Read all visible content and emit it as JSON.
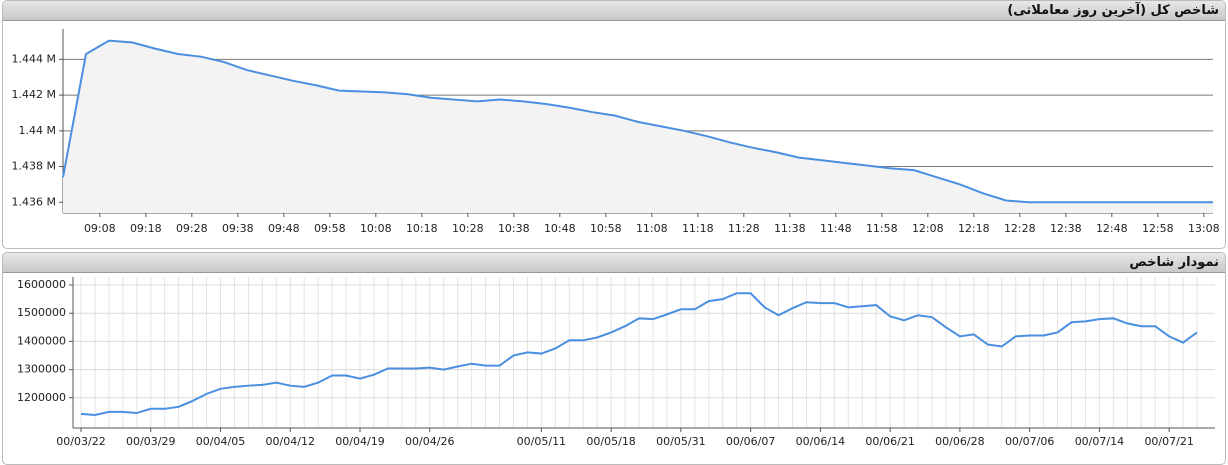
{
  "chart_data": [
    {
      "type": "line",
      "title": "شاخص کل (آخرین روز معاملاتی)",
      "color": "#4a8fe0",
      "grid": true,
      "x": [
        540,
        545,
        550,
        555,
        560,
        565,
        570,
        575,
        580,
        585,
        590,
        595,
        600,
        605,
        610,
        615,
        620,
        625,
        630,
        635,
        640,
        645,
        650,
        655,
        660,
        665,
        670,
        675,
        680,
        685,
        690,
        695,
        700,
        705,
        710,
        715,
        720,
        725,
        730,
        735,
        740,
        745,
        750,
        755,
        760,
        765,
        770,
        775,
        780,
        785,
        790
      ],
      "values": [
        1437400,
        1444300,
        1445050,
        1444950,
        1444600,
        1444300,
        1444150,
        1443850,
        1443400,
        1443100,
        1442800,
        1442550,
        1442250,
        1442200,
        1442150,
        1442050,
        1441850,
        1441750,
        1441650,
        1441750,
        1441650,
        1441500,
        1441300,
        1441050,
        1440850,
        1440500,
        1440250,
        1440000,
        1439700,
        1439350,
        1439050,
        1438800,
        1438500,
        1438350,
        1438200,
        1438050,
        1437900,
        1437800,
        1437400,
        1437000,
        1436500,
        1436100,
        1436000,
        1436000,
        1436000,
        1436000,
        1436000,
        1436000,
        1436000,
        1436000,
        1436000
      ],
      "xlim": [
        540,
        790
      ],
      "xticks": [
        {
          "value": 548,
          "label": "09:08"
        },
        {
          "value": 558,
          "label": "09:18"
        },
        {
          "value": 568,
          "label": "09:28"
        },
        {
          "value": 578,
          "label": "09:38"
        },
        {
          "value": 588,
          "label": "09:48"
        },
        {
          "value": 598,
          "label": "09:58"
        },
        {
          "value": 608,
          "label": "10:08"
        },
        {
          "value": 618,
          "label": "10:18"
        },
        {
          "value": 628,
          "label": "10:28"
        },
        {
          "value": 638,
          "label": "10:38"
        },
        {
          "value": 648,
          "label": "10:48"
        },
        {
          "value": 658,
          "label": "10:58"
        },
        {
          "value": 668,
          "label": "11:08"
        },
        {
          "value": 678,
          "label": "11:18"
        },
        {
          "value": 688,
          "label": "11:28"
        },
        {
          "value": 698,
          "label": "11:38"
        },
        {
          "value": 708,
          "label": "11:48"
        },
        {
          "value": 718,
          "label": "11:58"
        },
        {
          "value": 728,
          "label": "12:08"
        },
        {
          "value": 738,
          "label": "12:18"
        },
        {
          "value": 748,
          "label": "12:28"
        },
        {
          "value": 758,
          "label": "12:38"
        },
        {
          "value": 768,
          "label": "12:48"
        },
        {
          "value": 778,
          "label": "12:58"
        },
        {
          "value": 788,
          "label": "13:08"
        }
      ],
      "ylim": [
        1435400,
        1445700
      ],
      "yticks": [
        {
          "value": 1436000,
          "label": "1.436 M"
        },
        {
          "value": 1438000,
          "label": "1.438 M"
        },
        {
          "value": 1440000,
          "label": "1.44 M"
        },
        {
          "value": 1442000,
          "label": "1.442 M"
        },
        {
          "value": 1444000,
          "label": "1.444 M"
        }
      ]
    },
    {
      "type": "line",
      "title": "نمودار شاخص",
      "color": "#4a8fe0",
      "grid": true,
      "categories": [
        "00/03/22",
        null,
        null,
        null,
        null,
        "00/03/29",
        null,
        null,
        null,
        null,
        "00/04/05",
        null,
        null,
        null,
        null,
        "00/04/12",
        null,
        null,
        null,
        null,
        "00/04/19",
        null,
        null,
        null,
        null,
        "00/04/26",
        null,
        null,
        null,
        null,
        null,
        null,
        null,
        "00/05/11",
        null,
        null,
        null,
        null,
        "00/05/18",
        null,
        null,
        null,
        null,
        "00/05/31",
        null,
        null,
        null,
        null,
        "00/06/07",
        null,
        null,
        null,
        null,
        "00/06/14",
        null,
        null,
        null,
        null,
        "00/06/21",
        null,
        null,
        null,
        null,
        "00/06/28",
        null,
        null,
        null,
        null,
        "00/07/06",
        null,
        null,
        null,
        null,
        "00/07/14",
        null,
        null,
        null,
        null,
        "00/07/21",
        null,
        null
      ],
      "values": [
        1143000,
        1139000,
        1150000,
        1150000,
        1146000,
        1161000,
        1161000,
        1168000,
        1189000,
        1214000,
        1232000,
        1239000,
        1243000,
        1246000,
        1254000,
        1243000,
        1239000,
        1254000,
        1279000,
        1279000,
        1268000,
        1282000,
        1304000,
        1304000,
        1304000,
        1307000,
        1300000,
        1311000,
        1321000,
        1314000,
        1314000,
        1350000,
        1361000,
        1357000,
        1375000,
        1404000,
        1404000,
        1414000,
        1432000,
        1454000,
        1482000,
        1479000,
        1496000,
        1514000,
        1514000,
        1543000,
        1550000,
        1571000,
        1571000,
        1521000,
        1493000,
        1518000,
        1539000,
        1536000,
        1536000,
        1521000,
        1525000,
        1529000,
        1489000,
        1475000,
        1493000,
        1486000,
        1450000,
        1418000,
        1425000,
        1389000,
        1382000,
        1418000,
        1421000,
        1421000,
        1432000,
        1468000,
        1471000,
        1479000,
        1482000,
        1464000,
        1454000,
        1454000,
        1418000,
        1396000,
        1432000
      ],
      "ylim": [
        1092900,
        1628600
      ],
      "yticks": [
        1200000,
        1300000,
        1400000,
        1500000,
        1600000
      ]
    }
  ]
}
